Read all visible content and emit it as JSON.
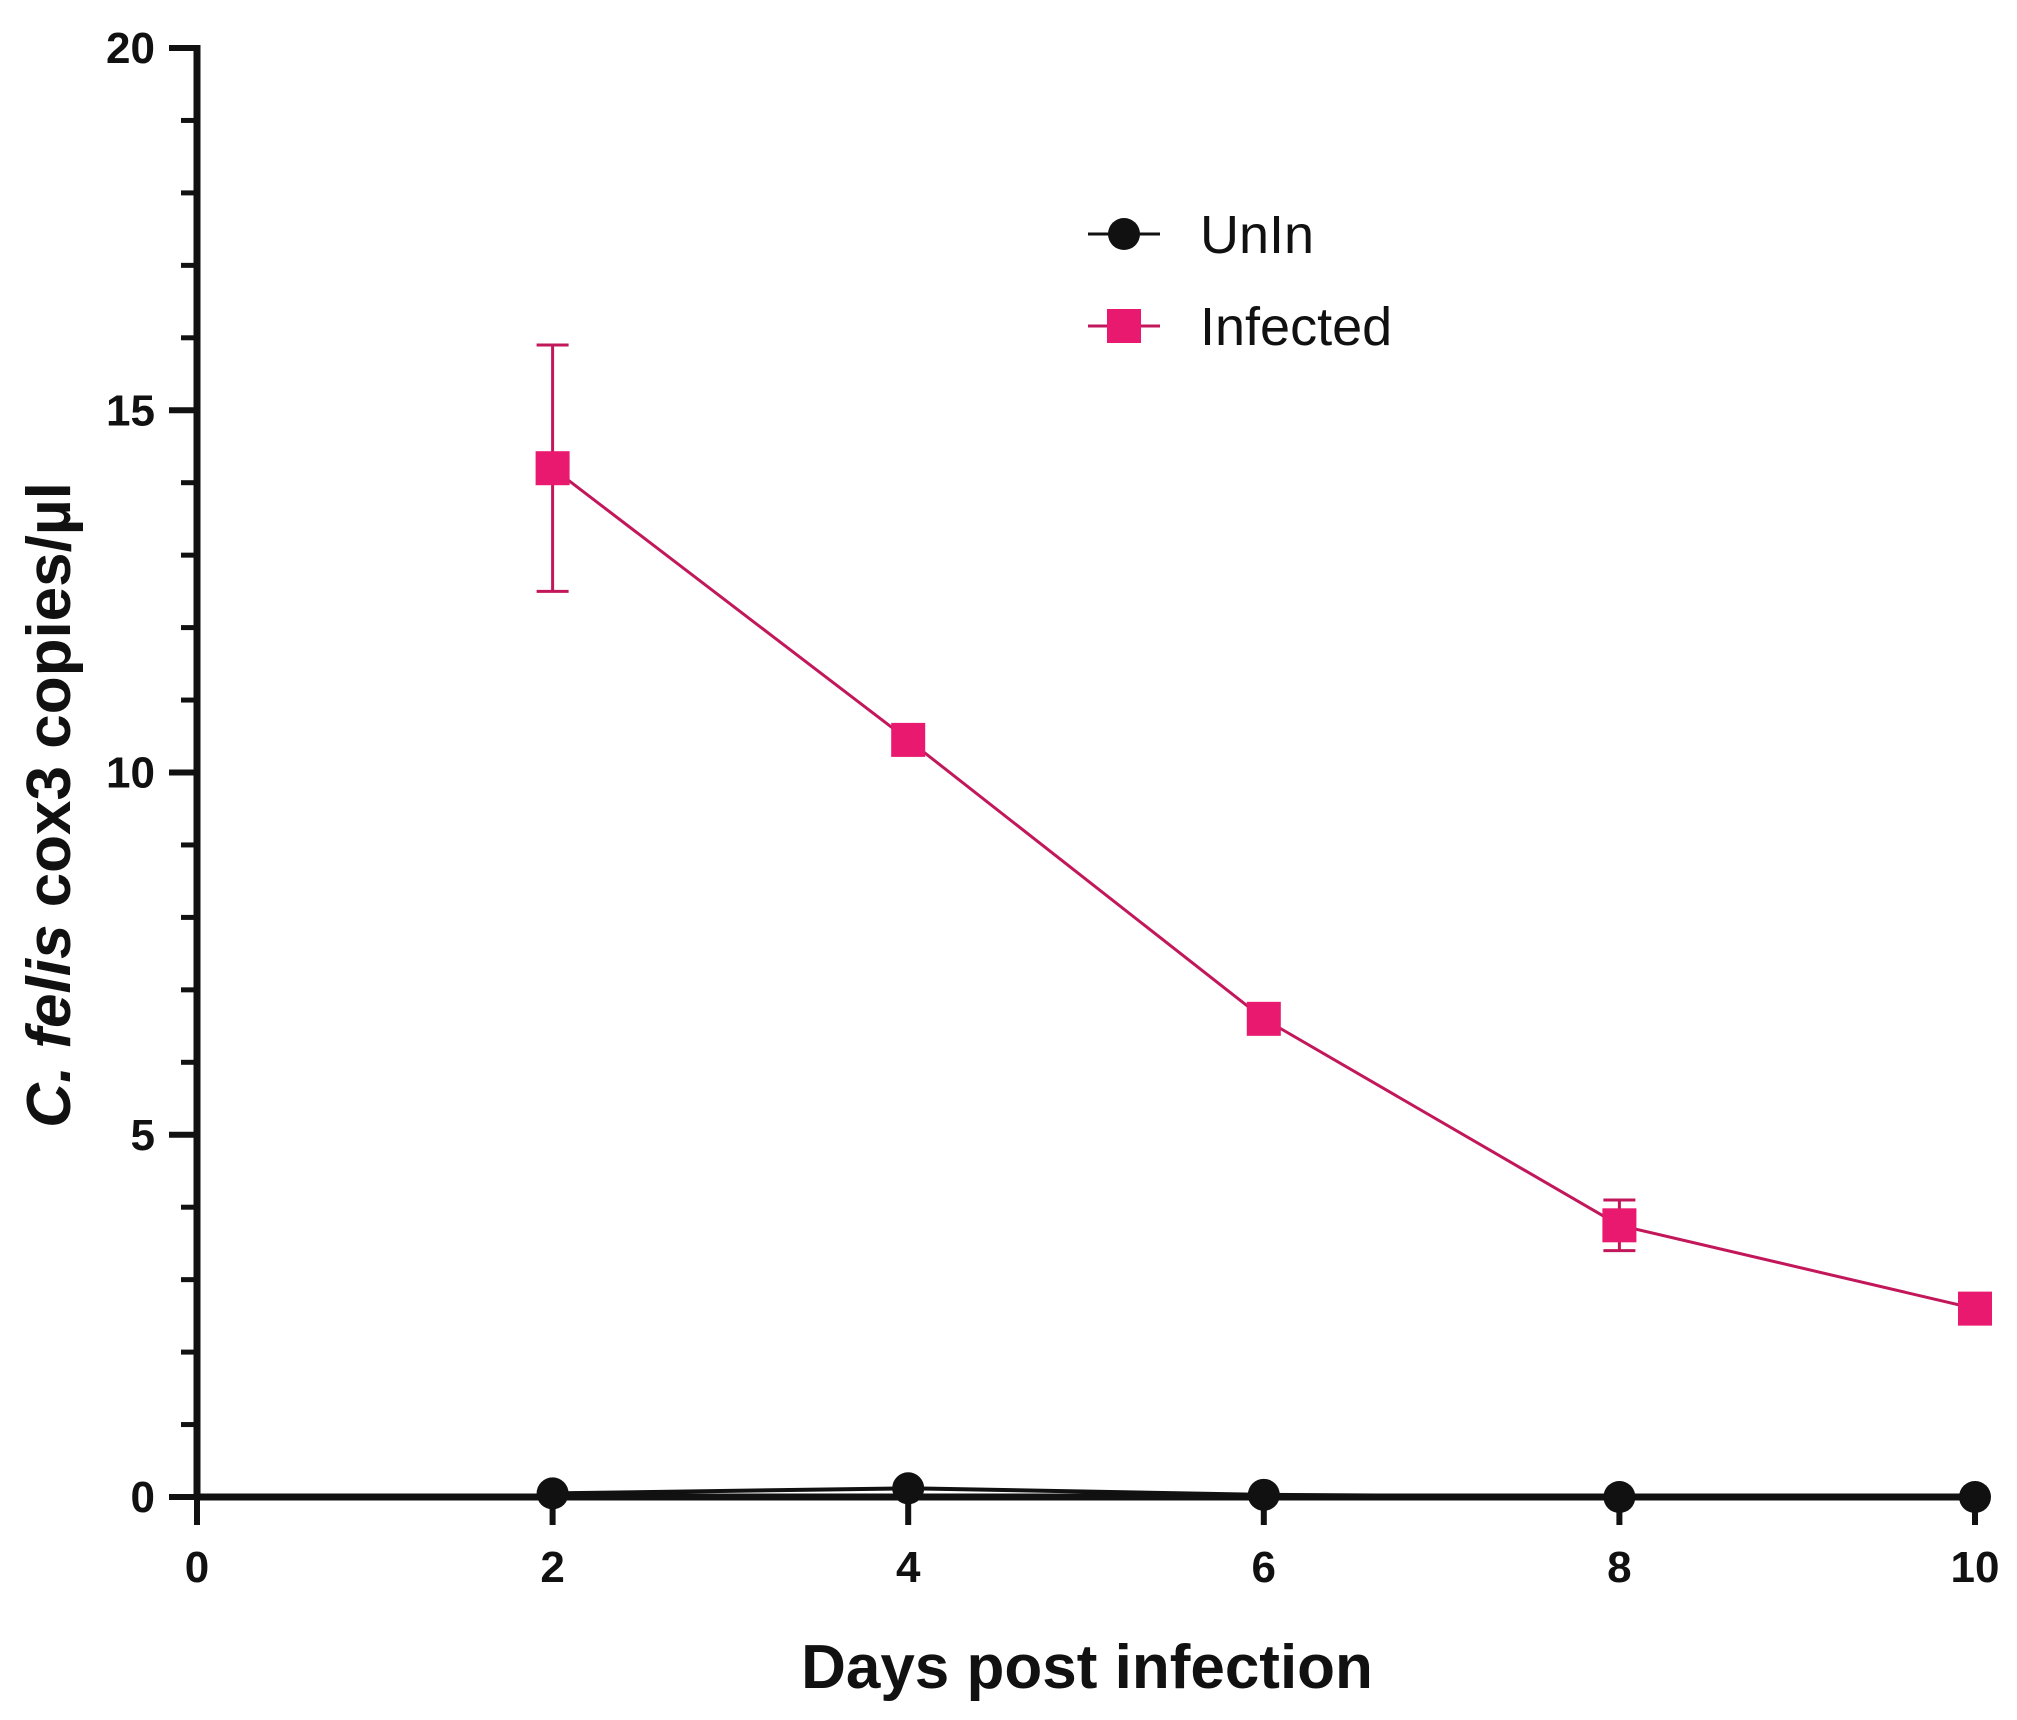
{
  "chart_data": {
    "type": "line",
    "xlabel": "Days post infection",
    "ylabel": {
      "italic_part": "C. felis",
      "rest": " cox3 copies/µl"
    },
    "xlim": [
      0,
      10
    ],
    "ylim": [
      0,
      20
    ],
    "x_ticks": [
      0,
      2,
      4,
      6,
      8,
      10
    ],
    "y_ticks": [
      0,
      5,
      10,
      15,
      20
    ],
    "y_minor_step": 1,
    "grid": false,
    "legend_position": "top-center",
    "series": [
      {
        "name": "UnIn",
        "marker": "circle",
        "color": "#111111",
        "x": [
          2,
          4,
          6,
          8,
          10
        ],
        "y": [
          0.05,
          0.12,
          0.03,
          0.0,
          0.0
        ],
        "error": [
          0,
          0,
          0,
          0,
          0
        ]
      },
      {
        "name": "Infected",
        "marker": "square",
        "color": "#e8196e",
        "line_color": "#c2185b",
        "x": [
          2,
          4,
          6,
          8,
          10
        ],
        "y": [
          14.2,
          10.45,
          6.6,
          3.75,
          2.6
        ],
        "error": [
          1.7,
          0,
          0,
          0.35,
          0
        ]
      }
    ]
  }
}
